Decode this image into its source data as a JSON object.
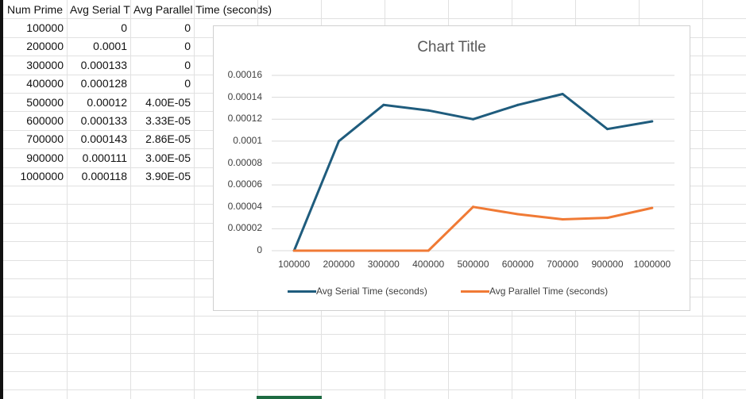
{
  "sheet": {
    "headers": [
      "Num Prime",
      "Avg Serial T",
      "Avg Parallel Time (seconds)"
    ],
    "rows": [
      [
        "100000",
        "0",
        "0"
      ],
      [
        "200000",
        "0.0001",
        "0"
      ],
      [
        "300000",
        "0.000133",
        "0"
      ],
      [
        "400000",
        "0.000128",
        "0"
      ],
      [
        "500000",
        "0.00012",
        "4.00E-05"
      ],
      [
        "600000",
        "0.000133",
        "3.33E-05"
      ],
      [
        "700000",
        "0.000143",
        "2.86E-05"
      ],
      [
        "900000",
        "0.000111",
        "3.00E-05"
      ],
      [
        "1000000",
        "0.000118",
        "3.90E-05"
      ]
    ]
  },
  "chart_data": {
    "type": "line",
    "title": "Chart Title",
    "categories": [
      "100000",
      "200000",
      "300000",
      "400000",
      "500000",
      "600000",
      "700000",
      "900000",
      "1000000"
    ],
    "series": [
      {
        "name": "Avg Serial Time (seconds)",
        "color": "#1f5c7d",
        "values": [
          0,
          0.0001,
          0.000133,
          0.000128,
          0.00012,
          0.000133,
          0.000143,
          0.000111,
          0.000118
        ]
      },
      {
        "name": "Avg Parallel Time (seconds)",
        "color": "#f07a35",
        "values": [
          0,
          0,
          0,
          0,
          4e-05,
          3.33e-05,
          2.86e-05,
          3e-05,
          3.9e-05
        ]
      }
    ],
    "yticks": [
      "0",
      "0.00002",
      "0.00004",
      "0.00006",
      "0.00008",
      "0.0001",
      "0.00012",
      "0.00014",
      "0.00016"
    ],
    "ylim": [
      0,
      0.00016
    ],
    "grid": true,
    "legend_position": "bottom"
  }
}
